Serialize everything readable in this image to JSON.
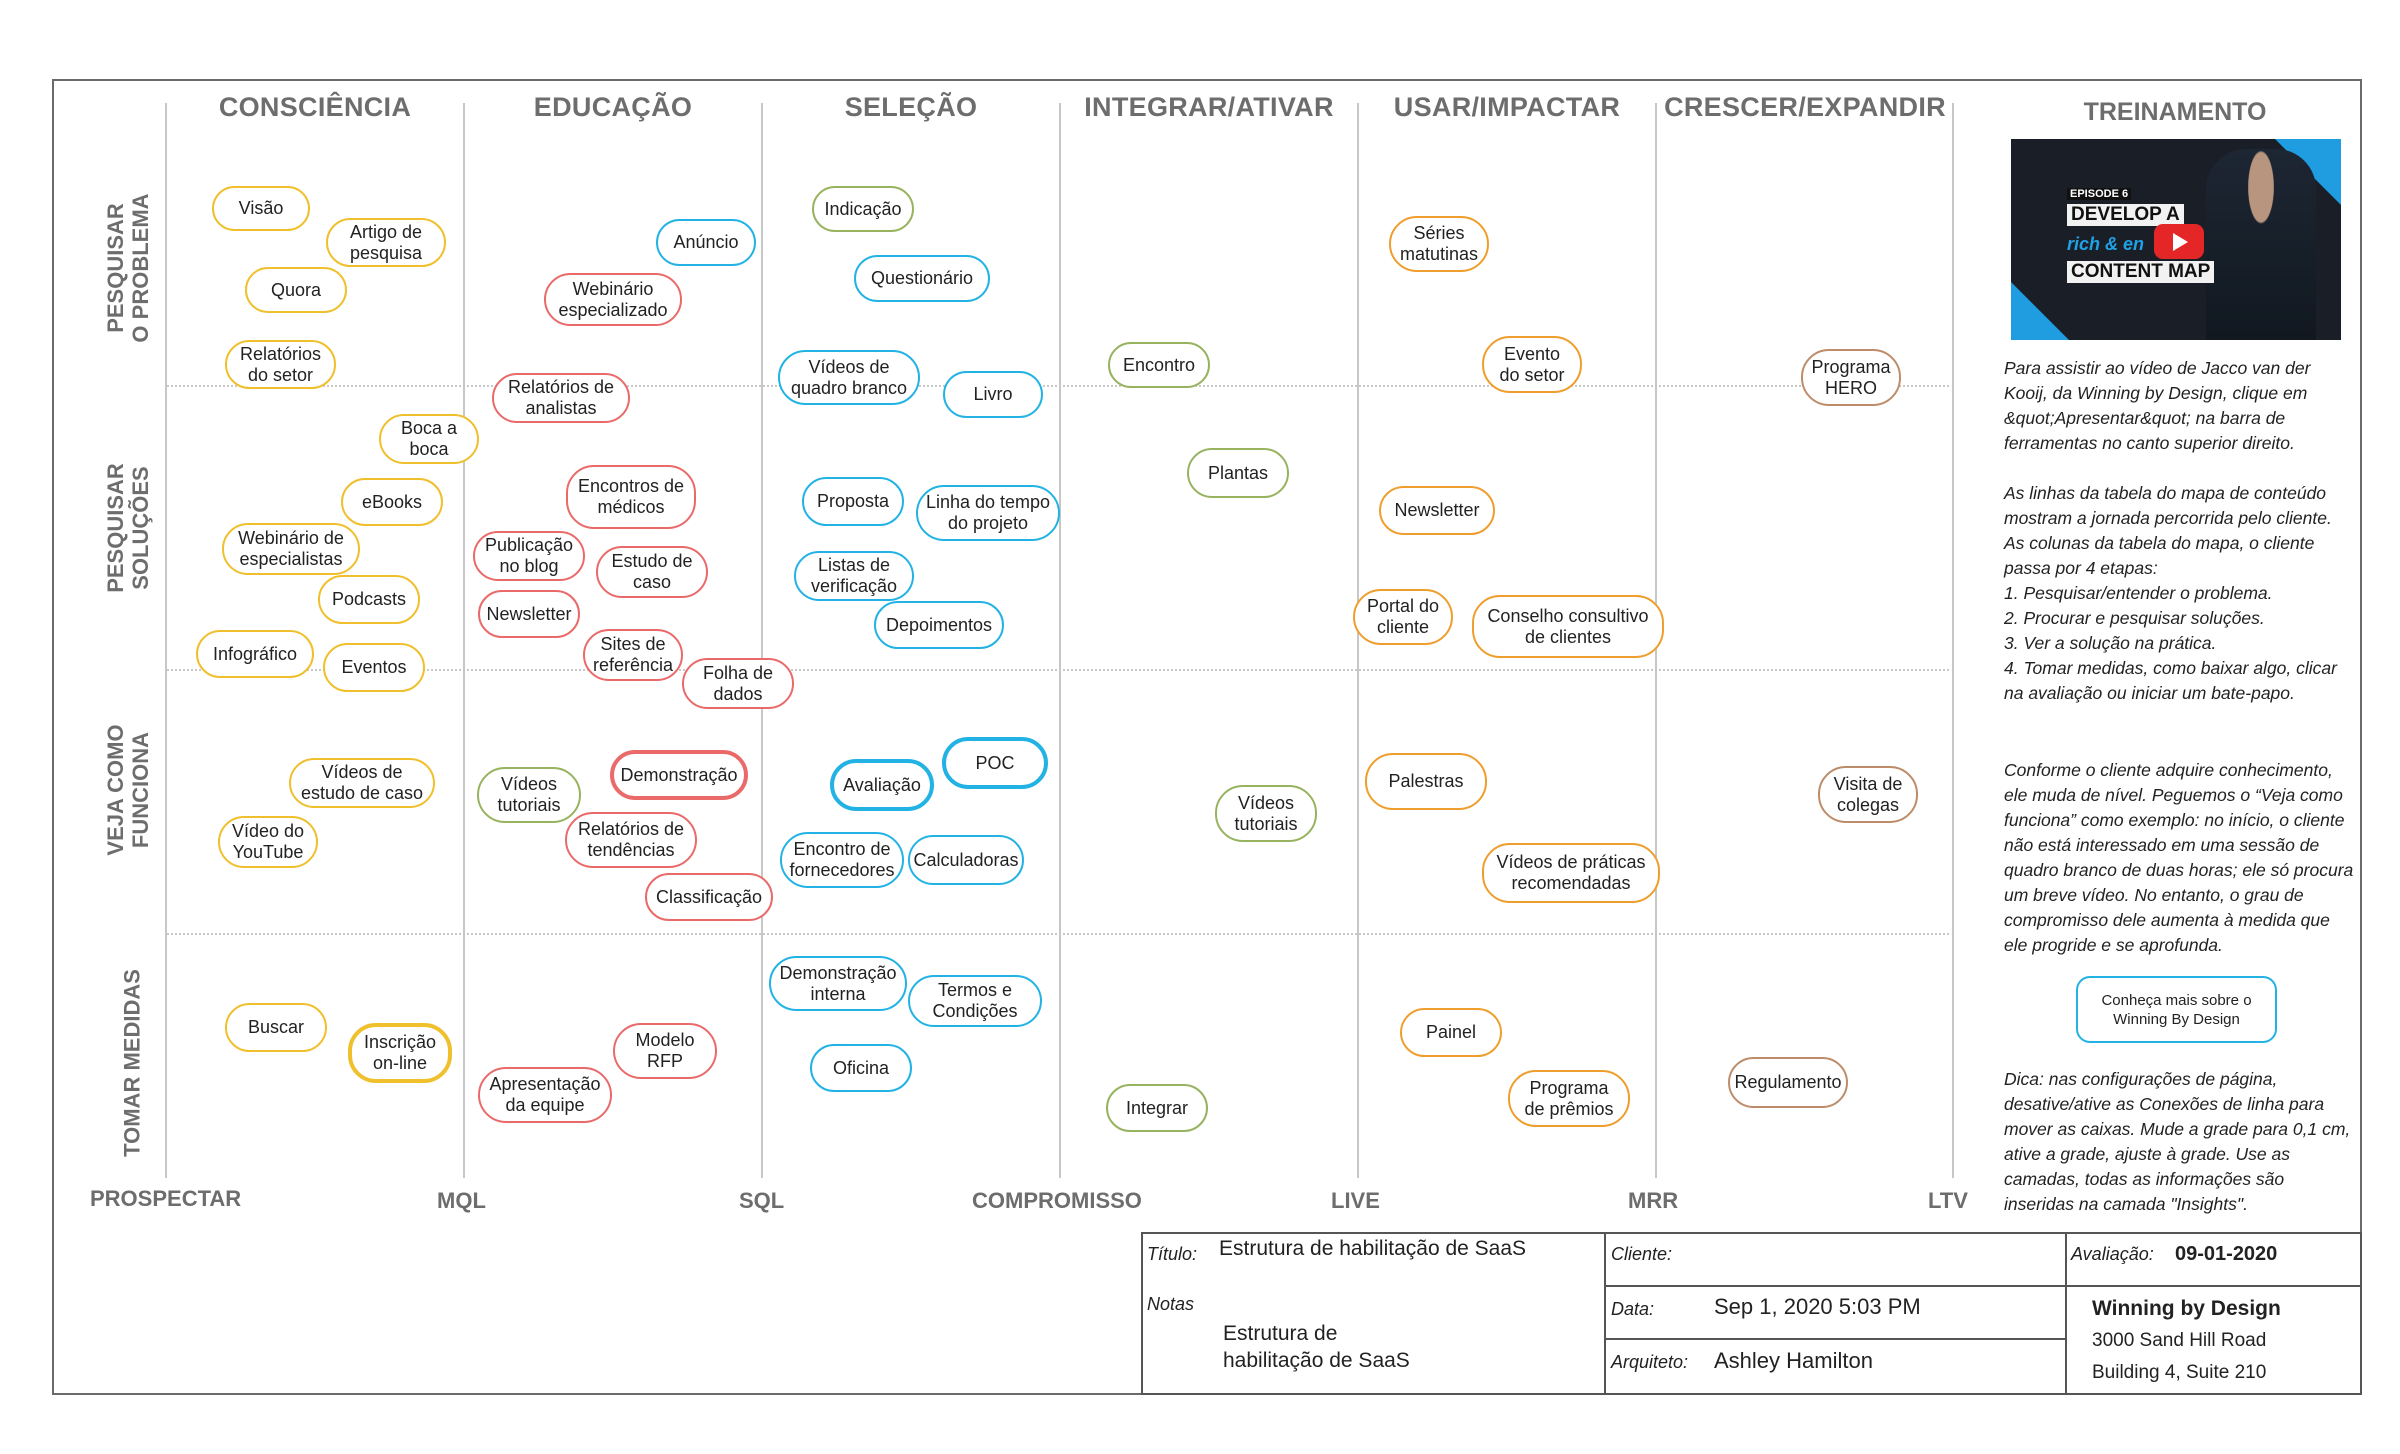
{
  "columns": [
    "CONSCIÊNCIA",
    "EDUCAÇÃO",
    "SELEÇÃO",
    "INTEGRAR/ATIVAR",
    "USAR/IMPACTAR",
    "CRESCER/EXPANDIR"
  ],
  "rows": [
    "PESQUISAR\nO PROBLEMA",
    "PESQUISAR\nSOLUÇÕES",
    "VEJA COMO\nFUNCIONA",
    "TOMAR MEDIDAS"
  ],
  "stages": [
    "PROSPECTAR",
    "MQL",
    "SQL",
    "COMPROMISSO",
    "LIVE",
    "MRR",
    "LTV"
  ],
  "nodes": [
    "Visão",
    "Artigo de\npesquisa",
    "Quora",
    "Relatórios\ndo setor",
    "Anúncio",
    "Webinário\nespecializado",
    "Relatórios de\nanalistas",
    "Indicação",
    "Questionário",
    "Vídeos de\nquadro branco",
    "Livro",
    "Encontro",
    "Séries\nmatutinas",
    "Evento\ndo setor",
    "Programa\nHERO",
    "Boca a\nboca",
    "eBooks",
    "Webinário de\nespecialistas",
    "Podcasts",
    "Infográfico",
    "Eventos",
    "Encontros de\nmédicos",
    "Publicação\nno blog",
    "Estudo de\ncaso",
    "Newsletter",
    "Sites de\nreferência",
    "Folha de\ndados",
    "Proposta",
    "Linha do tempo\ndo projeto",
    "Listas de\nverificação",
    "Depoimentos",
    "Plantas",
    "Newsletter",
    "Portal do\ncliente",
    "Conselho consultivo\nde clientes",
    "Vídeos de\nestudo de caso",
    "Vídeo do\nYouTube",
    "Vídeos\ntutoriais",
    "Demonstração",
    "Relatórios de\ntendências",
    "Classificação",
    "Avaliação",
    "POC",
    "Encontro de\nfornecedores",
    "Calculadoras",
    "Vídeos\ntutoriais",
    "Palestras",
    "Vídeos de práticas\nrecomendadas",
    "Visita de\ncolegas",
    "Buscar",
    "Inscrição\non-line",
    "Modelo\nRFP",
    "Apresentação\nda equipe",
    "Demonstração\ninterna",
    "Termos e\nCondições",
    "Oficina",
    "Integrar",
    "Painel",
    "Programa\nde prêmios",
    "Regulamento"
  ],
  "training": {
    "title": "TREINAMENTO",
    "video": {
      "episode": "EPISODE 6",
      "line1": "DEVELOP A",
      "line2": "rich & en",
      "line3": "CONTENT MAP",
      "icon": "youtube-play-icon"
    },
    "paragraph1": "Para assistir ao vídeo de Jacco van der Kooij, da Winning by Design, clique em &quot;Apresentar&quot; na barra de ferramentas no canto superior direito.",
    "paragraph2": "As linhas da tabela do mapa de conteúdo mostram a jornada percorrida pelo cliente. As colunas da tabela do mapa, o cliente passa por 4 etapas:\n1. Pesquisar/entender o problema.\n2. Procurar e pesquisar soluções.\n3. Ver a solução na prática.\n4. Tomar medidas, como baixar algo, clicar na avaliação ou iniciar um bate-papo.",
    "paragraph3": "Conforme o cliente adquire conhecimento, ele muda de nível. Peguemos o “Veja como funciona” como exemplo: no início, o cliente não está interessado em uma sessão de quadro branco de duas horas; ele só procura um breve vídeo. No entanto, o grau de compromisso dele aumenta à medida que ele progride e se aprofunda.",
    "learn_more": "Conheça mais sobre o\nWinning By Design",
    "tip": "Dica: nas configurações de página, desative/ative as Conexões de linha para mover as caixas. Mude a grade para 0,1 cm, ative a grade, ajuste à grade.  Use as camadas, todas as informações são inseridas na camada \"Insights\"."
  },
  "title_block": {
    "title_label": "Título:",
    "title_value": "Estrutura de habilitação de SaaS",
    "notes_label": "Notas",
    "notes_value": "Estrutura de\nhabilitação de SaaS",
    "client_label": "Cliente:",
    "client_value": "",
    "date_label": "Data:",
    "date_value": "Sep 1, 2020 5:03 PM",
    "architect_label": "Arquiteto:",
    "architect_value": "Ashley Hamilton",
    "review_label": "Avaliação:",
    "review_value": "09-01-2020",
    "company_name": "Winning by Design",
    "address1": "3000 Sand Hill Road",
    "address2": "Building 4, Suite 210"
  },
  "colors": {
    "yellow": "#f0bf2c",
    "blue": "#22b3e4",
    "red": "#ea6a6a",
    "green": "#98b35f",
    "orange": "#ef9e2d",
    "brown": "#bd8d6a",
    "heading_gray": "#6d6d6d",
    "frame_gray": "#6a6a6a"
  }
}
